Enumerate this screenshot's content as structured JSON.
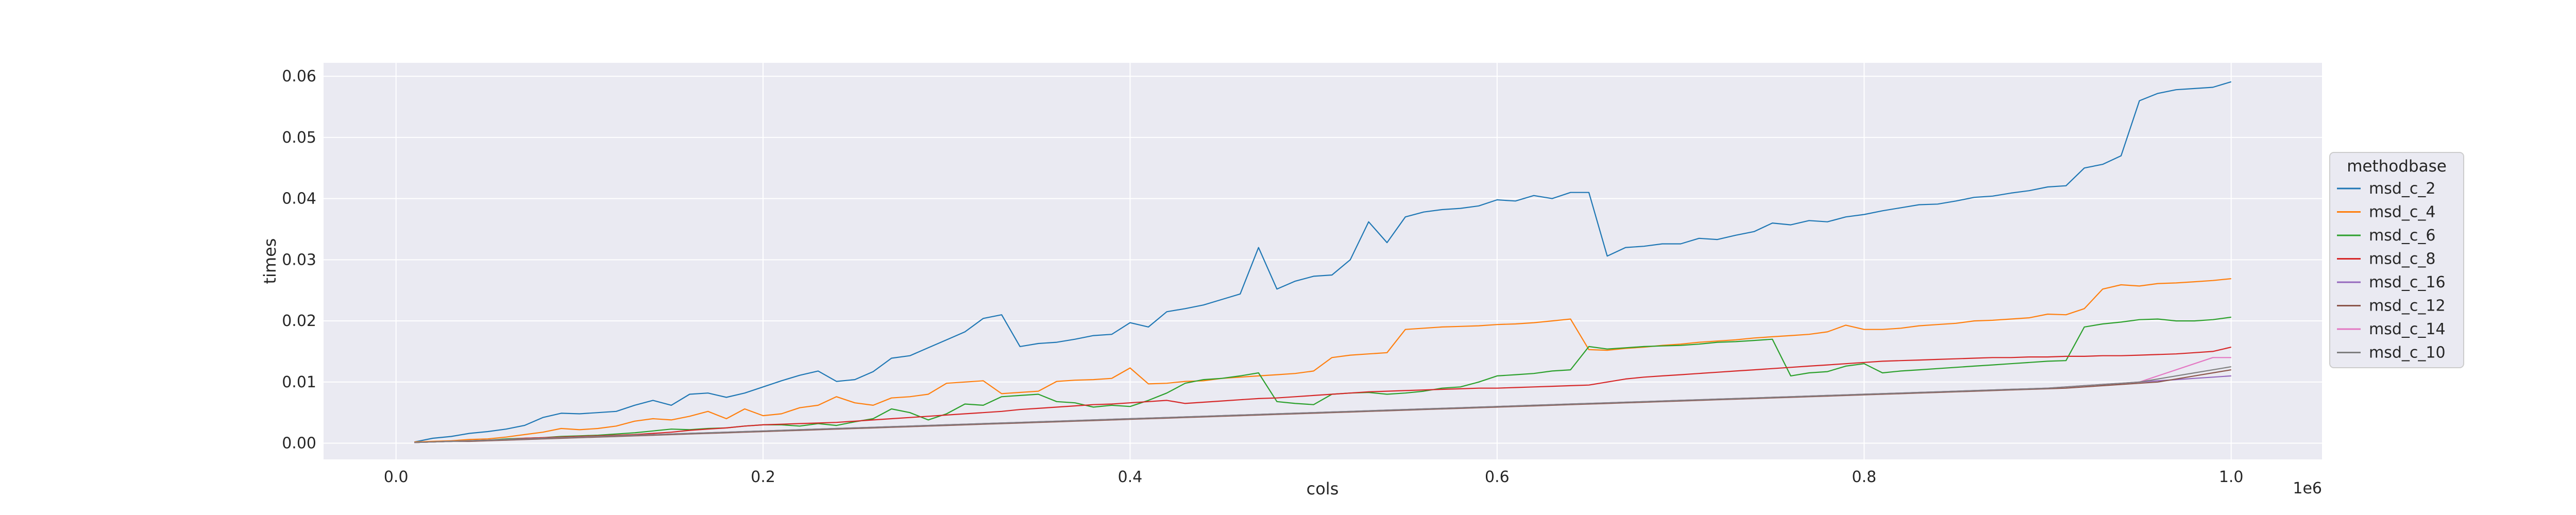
{
  "chart_data": {
    "type": "line",
    "xlabel": "cols",
    "ylabel": "times",
    "x_offset_label": "1e6",
    "xlim": [
      -0.0395,
      1.0495
    ],
    "ylim": [
      -0.00265,
      0.0622
    ],
    "x_ticks": [
      0.0,
      0.2,
      0.4,
      0.6,
      0.8,
      1.0
    ],
    "x_tick_labels": [
      "0.0",
      "0.2",
      "0.4",
      "0.6",
      "0.8",
      "1.0"
    ],
    "y_ticks": [
      0.0,
      0.01,
      0.02,
      0.03,
      0.04,
      0.05,
      0.06
    ],
    "y_tick_labels": [
      "0.00",
      "0.01",
      "0.02",
      "0.03",
      "0.04",
      "0.05",
      "0.06"
    ],
    "grid": true,
    "legend": {
      "title": "methodbase",
      "placement": "right"
    },
    "x": [
      0.01,
      0.02,
      0.03,
      0.04,
      0.05,
      0.06,
      0.07,
      0.08,
      0.09,
      0.1,
      0.11,
      0.12,
      0.13,
      0.14,
      0.15,
      0.16,
      0.17,
      0.18,
      0.19,
      0.2,
      0.21,
      0.22,
      0.23,
      0.24,
      0.25,
      0.26,
      0.27,
      0.28,
      0.29,
      0.3,
      0.31,
      0.32,
      0.33,
      0.34,
      0.35,
      0.36,
      0.37,
      0.38,
      0.39,
      0.4,
      0.41,
      0.42,
      0.43,
      0.44,
      0.45,
      0.46,
      0.47,
      0.48,
      0.49,
      0.5,
      0.51,
      0.52,
      0.53,
      0.54,
      0.55,
      0.56,
      0.57,
      0.58,
      0.59,
      0.6,
      0.61,
      0.62,
      0.63,
      0.64,
      0.65,
      0.66,
      0.67,
      0.68,
      0.69,
      0.7,
      0.71,
      0.72,
      0.73,
      0.74,
      0.75,
      0.76,
      0.77,
      0.78,
      0.79,
      0.8,
      0.81,
      0.82,
      0.83,
      0.84,
      0.85,
      0.86,
      0.87,
      0.88,
      0.89,
      0.9,
      0.91,
      0.92,
      0.93,
      0.94,
      0.95,
      0.96,
      0.97,
      0.98,
      0.99,
      1.0
    ],
    "series": [
      {
        "name": "msd_c_2",
        "color": "#1f77b4",
        "values": [
          0.0002,
          0.0008,
          0.0011,
          0.0016,
          0.0019,
          0.0023,
          0.0029,
          0.0042,
          0.0049,
          0.0048,
          0.005,
          0.0052,
          0.0062,
          0.007,
          0.0062,
          0.008,
          0.0082,
          0.0075,
          0.0082,
          0.0092,
          0.0102,
          0.0111,
          0.0118,
          0.0101,
          0.0104,
          0.0117,
          0.0139,
          0.0143,
          0.0156,
          0.0169,
          0.0182,
          0.0204,
          0.021,
          0.0158,
          0.0163,
          0.0165,
          0.017,
          0.0176,
          0.0178,
          0.0197,
          0.019,
          0.0215,
          0.022,
          0.0226,
          0.0235,
          0.0244,
          0.032,
          0.0252,
          0.0265,
          0.0273,
          0.0275,
          0.03,
          0.0362,
          0.0328,
          0.037,
          0.0378,
          0.0382,
          0.0384,
          0.0388,
          0.0398,
          0.0396,
          0.0405,
          0.04,
          0.041,
          0.041,
          0.0306,
          0.032,
          0.0322,
          0.0326,
          0.0326,
          0.0335,
          0.0333,
          0.034,
          0.0346,
          0.036,
          0.0357,
          0.0364,
          0.0362,
          0.037,
          0.0374,
          0.038,
          0.0385,
          0.039,
          0.0391,
          0.0396,
          0.0402,
          0.0404,
          0.0409,
          0.0413,
          0.0419,
          0.0421,
          0.045,
          0.0456,
          0.047,
          0.056,
          0.0572,
          0.0578,
          0.058,
          0.0582,
          0.0591
        ]
      },
      {
        "name": "msd_c_4",
        "color": "#ff7f0e",
        "values": [
          0.0002,
          0.0003,
          0.0004,
          0.0006,
          0.0007,
          0.001,
          0.0014,
          0.0018,
          0.0024,
          0.0022,
          0.0024,
          0.0028,
          0.0036,
          0.004,
          0.0038,
          0.0044,
          0.0052,
          0.004,
          0.0056,
          0.0045,
          0.0048,
          0.0058,
          0.0062,
          0.0076,
          0.0066,
          0.0062,
          0.0074,
          0.0076,
          0.008,
          0.0098,
          0.01,
          0.0102,
          0.0081,
          0.0083,
          0.0085,
          0.0101,
          0.0103,
          0.0104,
          0.0106,
          0.0123,
          0.0097,
          0.0098,
          0.0101,
          0.0102,
          0.0106,
          0.0108,
          0.011,
          0.0112,
          0.0114,
          0.0118,
          0.014,
          0.0144,
          0.0146,
          0.0148,
          0.0186,
          0.0188,
          0.019,
          0.0191,
          0.0192,
          0.0194,
          0.0195,
          0.0197,
          0.02,
          0.0203,
          0.0153,
          0.0152,
          0.0155,
          0.0157,
          0.016,
          0.0162,
          0.0165,
          0.0167,
          0.0169,
          0.0172,
          0.0174,
          0.0176,
          0.0178,
          0.0182,
          0.0193,
          0.0186,
          0.0186,
          0.0188,
          0.0192,
          0.0194,
          0.0196,
          0.02,
          0.0201,
          0.0203,
          0.0205,
          0.0211,
          0.021,
          0.022,
          0.0252,
          0.0259,
          0.0257,
          0.0261,
          0.0262,
          0.0264,
          0.0266,
          0.0269
        ]
      },
      {
        "name": "msd_c_6",
        "color": "#2ca02c",
        "values": [
          0.0001,
          0.0002,
          0.0003,
          0.0004,
          0.0005,
          0.0007,
          0.0008,
          0.0009,
          0.0011,
          0.0012,
          0.0013,
          0.0015,
          0.0017,
          0.002,
          0.0023,
          0.0022,
          0.0024,
          0.0025,
          0.0028,
          0.003,
          0.003,
          0.0028,
          0.0032,
          0.0029,
          0.0035,
          0.004,
          0.0056,
          0.005,
          0.0038,
          0.0048,
          0.0064,
          0.0062,
          0.0076,
          0.0078,
          0.008,
          0.0068,
          0.0066,
          0.0059,
          0.0062,
          0.006,
          0.007,
          0.0082,
          0.0098,
          0.0104,
          0.0106,
          0.011,
          0.0115,
          0.0068,
          0.0065,
          0.0063,
          0.008,
          0.0082,
          0.0083,
          0.008,
          0.0082,
          0.0085,
          0.009,
          0.0092,
          0.01,
          0.011,
          0.0112,
          0.0114,
          0.0118,
          0.012,
          0.0158,
          0.0154,
          0.0156,
          0.0158,
          0.0159,
          0.016,
          0.0162,
          0.0165,
          0.0166,
          0.0168,
          0.017,
          0.011,
          0.0115,
          0.0117,
          0.0126,
          0.013,
          0.0115,
          0.0118,
          0.012,
          0.0122,
          0.0124,
          0.0126,
          0.0128,
          0.013,
          0.0132,
          0.0134,
          0.0135,
          0.019,
          0.0195,
          0.0198,
          0.0202,
          0.0203,
          0.02,
          0.02,
          0.0202,
          0.0206
        ]
      },
      {
        "name": "msd_c_8",
        "color": "#d62728",
        "values": [
          0.0001,
          0.0002,
          0.0003,
          0.0004,
          0.0005,
          0.0006,
          0.0008,
          0.0009,
          0.001,
          0.0011,
          0.0012,
          0.0013,
          0.0014,
          0.0016,
          0.0018,
          0.0021,
          0.0023,
          0.0025,
          0.0028,
          0.003,
          0.0031,
          0.0032,
          0.0033,
          0.0034,
          0.0036,
          0.0038,
          0.004,
          0.0042,
          0.0044,
          0.0046,
          0.0048,
          0.005,
          0.0052,
          0.0055,
          0.0057,
          0.0059,
          0.0061,
          0.0063,
          0.0064,
          0.0066,
          0.0068,
          0.007,
          0.0065,
          0.0067,
          0.0069,
          0.0071,
          0.0073,
          0.0074,
          0.0076,
          0.0078,
          0.008,
          0.0082,
          0.0084,
          0.0085,
          0.0086,
          0.0087,
          0.0088,
          0.0089,
          0.009,
          0.009,
          0.0091,
          0.0092,
          0.0093,
          0.0094,
          0.0095,
          0.01,
          0.0105,
          0.0108,
          0.011,
          0.0112,
          0.0114,
          0.0116,
          0.0118,
          0.012,
          0.0122,
          0.0124,
          0.0126,
          0.0128,
          0.013,
          0.0132,
          0.0134,
          0.0135,
          0.0136,
          0.0137,
          0.0138,
          0.0139,
          0.014,
          0.014,
          0.0141,
          0.0141,
          0.0142,
          0.0142,
          0.0143,
          0.0143,
          0.0144,
          0.0145,
          0.0146,
          0.0148,
          0.015,
          0.0157
        ]
      },
      {
        "name": "msd_c_16",
        "color": "#9467bd",
        "values": [
          0.0001,
          0.0002,
          0.0003,
          0.0004,
          0.0005,
          0.0006,
          0.0007,
          0.0008,
          0.0009,
          0.001,
          0.0011,
          0.0012,
          0.0013,
          0.0014,
          0.0015,
          0.0016,
          0.0017,
          0.0018,
          0.0019,
          0.002,
          0.0021,
          0.0022,
          0.0023,
          0.0024,
          0.0025,
          0.0026,
          0.0027,
          0.0028,
          0.0029,
          0.003,
          0.0031,
          0.0032,
          0.0033,
          0.0034,
          0.0035,
          0.0036,
          0.0037,
          0.0038,
          0.0039,
          0.004,
          0.0041,
          0.0042,
          0.0043,
          0.0044,
          0.0045,
          0.0046,
          0.0047,
          0.0048,
          0.0049,
          0.005,
          0.0051,
          0.0052,
          0.0053,
          0.0054,
          0.0055,
          0.0056,
          0.0057,
          0.0058,
          0.0059,
          0.006,
          0.0061,
          0.0062,
          0.0063,
          0.0064,
          0.0065,
          0.0066,
          0.0067,
          0.0068,
          0.0069,
          0.007,
          0.0071,
          0.0072,
          0.0073,
          0.0074,
          0.0075,
          0.0076,
          0.0077,
          0.0078,
          0.0079,
          0.008,
          0.0081,
          0.0082,
          0.0083,
          0.0084,
          0.0085,
          0.0086,
          0.0087,
          0.0088,
          0.0089,
          0.009,
          0.0092,
          0.0094,
          0.0096,
          0.0098,
          0.01,
          0.0102,
          0.0104,
          0.0106,
          0.0108,
          0.011
        ]
      },
      {
        "name": "msd_c_12",
        "color": "#8c564b",
        "values": [
          0.0001,
          0.0002,
          0.0003,
          0.0003,
          0.0004,
          0.0005,
          0.0006,
          0.0007,
          0.0008,
          0.0009,
          0.001,
          0.0011,
          0.0012,
          0.0013,
          0.0014,
          0.0015,
          0.0016,
          0.0017,
          0.0018,
          0.0019,
          0.002,
          0.0021,
          0.0022,
          0.0023,
          0.0024,
          0.0025,
          0.0026,
          0.0027,
          0.0028,
          0.0029,
          0.003,
          0.0031,
          0.0032,
          0.0033,
          0.0034,
          0.0035,
          0.0036,
          0.0037,
          0.0038,
          0.0039,
          0.004,
          0.0041,
          0.0042,
          0.0043,
          0.0044,
          0.0045,
          0.0046,
          0.0047,
          0.0048,
          0.0049,
          0.005,
          0.0051,
          0.0052,
          0.0053,
          0.0054,
          0.0055,
          0.0056,
          0.0057,
          0.0058,
          0.0059,
          0.006,
          0.0061,
          0.0062,
          0.0063,
          0.0064,
          0.0065,
          0.0066,
          0.0067,
          0.0068,
          0.0069,
          0.007,
          0.0071,
          0.0072,
          0.0073,
          0.0074,
          0.0075,
          0.0076,
          0.0077,
          0.0078,
          0.0079,
          0.008,
          0.0081,
          0.0082,
          0.0083,
          0.0084,
          0.0085,
          0.0086,
          0.0087,
          0.0088,
          0.0089,
          0.009,
          0.0092,
          0.0094,
          0.0096,
          0.0098,
          0.01,
          0.0105,
          0.011,
          0.0115,
          0.012
        ]
      },
      {
        "name": "msd_c_14",
        "color": "#e377c2",
        "values": [
          0.0001,
          0.0002,
          0.0003,
          0.0004,
          0.0005,
          0.0006,
          0.0007,
          0.0008,
          0.0009,
          0.001,
          0.0011,
          0.0012,
          0.0013,
          0.0014,
          0.0015,
          0.0016,
          0.0017,
          0.0018,
          0.0019,
          0.002,
          0.0021,
          0.0022,
          0.0023,
          0.0024,
          0.0025,
          0.0026,
          0.0027,
          0.0028,
          0.0029,
          0.003,
          0.0031,
          0.0032,
          0.0033,
          0.0034,
          0.0035,
          0.0036,
          0.0037,
          0.0038,
          0.0039,
          0.004,
          0.0041,
          0.0042,
          0.0043,
          0.0044,
          0.0045,
          0.0046,
          0.0047,
          0.0048,
          0.0049,
          0.005,
          0.0051,
          0.0052,
          0.0053,
          0.0054,
          0.0055,
          0.0056,
          0.0057,
          0.0058,
          0.0059,
          0.006,
          0.0061,
          0.0062,
          0.0063,
          0.0064,
          0.0065,
          0.0066,
          0.0067,
          0.0068,
          0.0069,
          0.007,
          0.0071,
          0.0072,
          0.0073,
          0.0074,
          0.0075,
          0.0076,
          0.0077,
          0.0078,
          0.0079,
          0.008,
          0.0081,
          0.0082,
          0.0083,
          0.0084,
          0.0085,
          0.0086,
          0.0087,
          0.0088,
          0.0089,
          0.009,
          0.0092,
          0.0094,
          0.0096,
          0.0098,
          0.01,
          0.011,
          0.012,
          0.013,
          0.014,
          0.014
        ]
      },
      {
        "name": "msd_c_10",
        "color": "#7f7f7f",
        "values": [
          0.0001,
          0.0002,
          0.0003,
          0.0004,
          0.0005,
          0.0006,
          0.0007,
          0.0008,
          0.0009,
          0.001,
          0.0011,
          0.0012,
          0.0013,
          0.0014,
          0.0015,
          0.0016,
          0.0017,
          0.0018,
          0.0019,
          0.002,
          0.0021,
          0.0022,
          0.0023,
          0.0024,
          0.0025,
          0.0026,
          0.0027,
          0.0028,
          0.0029,
          0.003,
          0.0031,
          0.0032,
          0.0033,
          0.0034,
          0.0035,
          0.0036,
          0.0037,
          0.0038,
          0.0039,
          0.004,
          0.0041,
          0.0042,
          0.0043,
          0.0044,
          0.0045,
          0.0046,
          0.0047,
          0.0048,
          0.0049,
          0.005,
          0.0051,
          0.0052,
          0.0053,
          0.0054,
          0.0055,
          0.0056,
          0.0057,
          0.0058,
          0.0059,
          0.006,
          0.0061,
          0.0062,
          0.0063,
          0.0064,
          0.0065,
          0.0066,
          0.0067,
          0.0068,
          0.0069,
          0.007,
          0.0071,
          0.0072,
          0.0073,
          0.0074,
          0.0075,
          0.0076,
          0.0077,
          0.0078,
          0.0079,
          0.008,
          0.0081,
          0.0082,
          0.0083,
          0.0084,
          0.0085,
          0.0086,
          0.0087,
          0.0088,
          0.0089,
          0.009,
          0.0092,
          0.0094,
          0.0096,
          0.0098,
          0.01,
          0.0105,
          0.011,
          0.0115,
          0.012,
          0.0125
        ]
      }
    ]
  }
}
